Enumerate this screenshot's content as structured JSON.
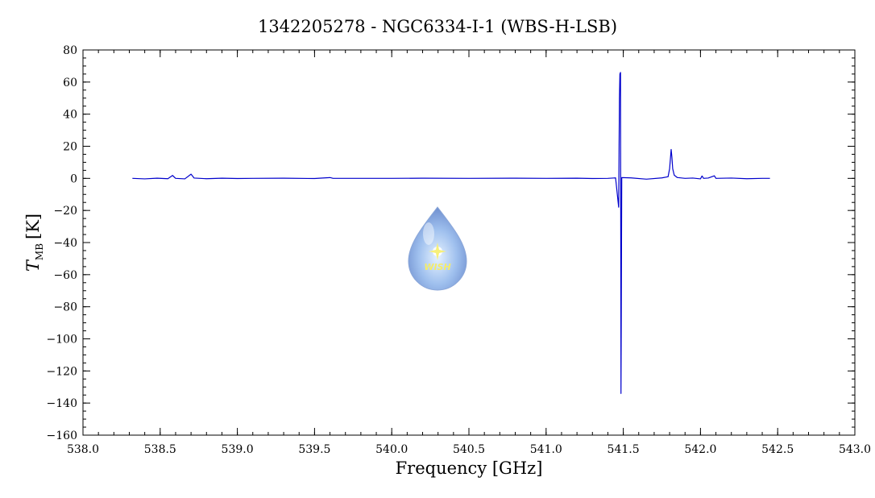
{
  "chart_data": {
    "type": "line",
    "title": "1342205278 - NGC6334-I-1 (WBS-H-LSB)",
    "xlabel": "Frequency [GHz]",
    "ylabel_main": "T",
    "ylabel_sub": "MB",
    "ylabel_unit": "[K]",
    "xlim": [
      538.0,
      543.0
    ],
    "ylim": [
      -160,
      80
    ],
    "x_ticks": [
      538.0,
      538.5,
      539.0,
      539.5,
      540.0,
      540.5,
      541.0,
      541.5,
      542.0,
      542.5,
      543.0
    ],
    "x_tick_labels": [
      "538.0",
      "538.5",
      "539.0",
      "539.5",
      "540.0",
      "540.5",
      "541.0",
      "541.5",
      "542.0",
      "542.5",
      "543.0"
    ],
    "y_ticks": [
      80,
      60,
      40,
      20,
      0,
      -20,
      -40,
      -60,
      -80,
      -100,
      -120,
      -140,
      -160
    ],
    "y_tick_labels": [
      "80",
      "60",
      "40",
      "20",
      "0",
      "−20",
      "−40",
      "−60",
      "−80",
      "−100",
      "−120",
      "−140",
      "−160"
    ],
    "grid": false,
    "series": [
      {
        "color": "#0000cc",
        "points": [
          [
            538.32,
            0.0
          ],
          [
            538.4,
            -0.3
          ],
          [
            538.48,
            0.1
          ],
          [
            538.55,
            -0.2
          ],
          [
            538.58,
            1.8
          ],
          [
            538.6,
            0.0
          ],
          [
            538.66,
            -0.3
          ],
          [
            538.7,
            2.6
          ],
          [
            538.72,
            0.2
          ],
          [
            538.8,
            -0.2
          ],
          [
            538.9,
            0.1
          ],
          [
            539.0,
            -0.1
          ],
          [
            539.1,
            0.0
          ],
          [
            539.3,
            0.1
          ],
          [
            539.5,
            -0.1
          ],
          [
            539.6,
            0.5
          ],
          [
            539.62,
            0.0
          ],
          [
            539.8,
            0.0
          ],
          [
            540.0,
            0.0
          ],
          [
            540.2,
            0.1
          ],
          [
            540.5,
            0.0
          ],
          [
            540.8,
            0.1
          ],
          [
            541.0,
            0.0
          ],
          [
            541.2,
            0.1
          ],
          [
            541.3,
            -0.1
          ],
          [
            541.4,
            0.0
          ],
          [
            541.45,
            0.3
          ],
          [
            541.47,
            -18
          ],
          [
            541.475,
            50
          ],
          [
            541.478,
            65
          ],
          [
            541.482,
            66
          ],
          [
            541.485,
            -134
          ],
          [
            541.487,
            -83
          ],
          [
            541.49,
            0.5
          ],
          [
            541.55,
            0.3
          ],
          [
            541.65,
            -0.5
          ],
          [
            541.75,
            0.3
          ],
          [
            541.79,
            1.0
          ],
          [
            541.8,
            6.0
          ],
          [
            541.81,
            18.0
          ],
          [
            541.815,
            13.0
          ],
          [
            541.82,
            6.0
          ],
          [
            541.83,
            2.0
          ],
          [
            541.85,
            0.5
          ],
          [
            541.9,
            0.0
          ],
          [
            541.95,
            0.2
          ],
          [
            542.0,
            -0.3
          ],
          [
            542.01,
            1.5
          ],
          [
            542.02,
            0.0
          ],
          [
            542.05,
            0.2
          ],
          [
            542.09,
            1.6
          ],
          [
            542.1,
            0.0
          ],
          [
            542.2,
            0.2
          ],
          [
            542.3,
            -0.2
          ],
          [
            542.4,
            0.0
          ],
          [
            542.45,
            0.0
          ]
        ]
      }
    ],
    "watermark": "WISH"
  }
}
